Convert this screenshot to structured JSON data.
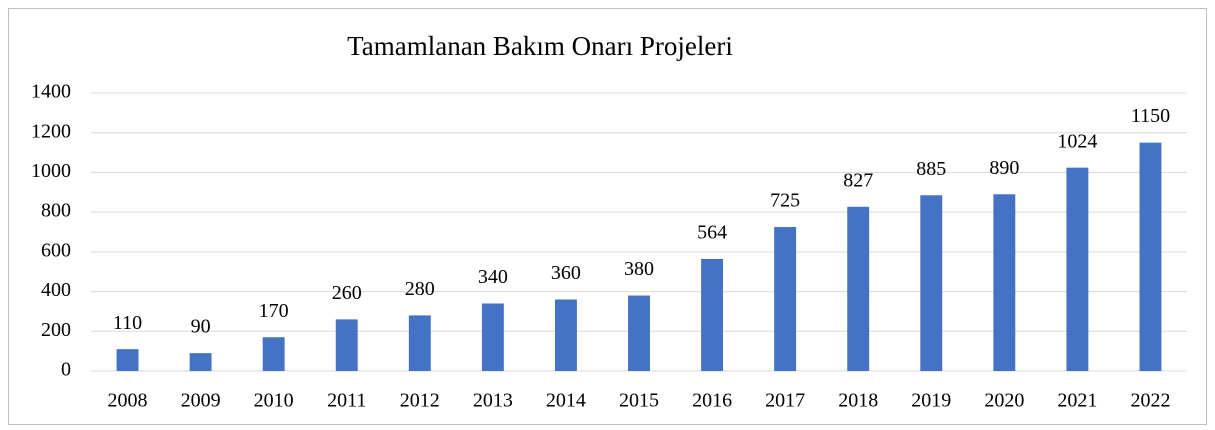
{
  "chart_data": {
    "type": "bar",
    "title": "Tamamlanan Bakım Onarı Projeleri",
    "categories": [
      "2008",
      "2009",
      "2010",
      "2011",
      "2012",
      "2013",
      "2014",
      "2015",
      "2016",
      "2017",
      "2018",
      "2019",
      "2020",
      "2021",
      "2022"
    ],
    "values": [
      110,
      90,
      170,
      260,
      280,
      340,
      360,
      380,
      564,
      725,
      827,
      885,
      890,
      1024,
      1150
    ],
    "color": "#4472c4",
    "ylim": [
      0,
      1400
    ],
    "yticks": [
      0,
      200,
      400,
      600,
      800,
      1000,
      1200,
      1400
    ],
    "grid": true
  }
}
